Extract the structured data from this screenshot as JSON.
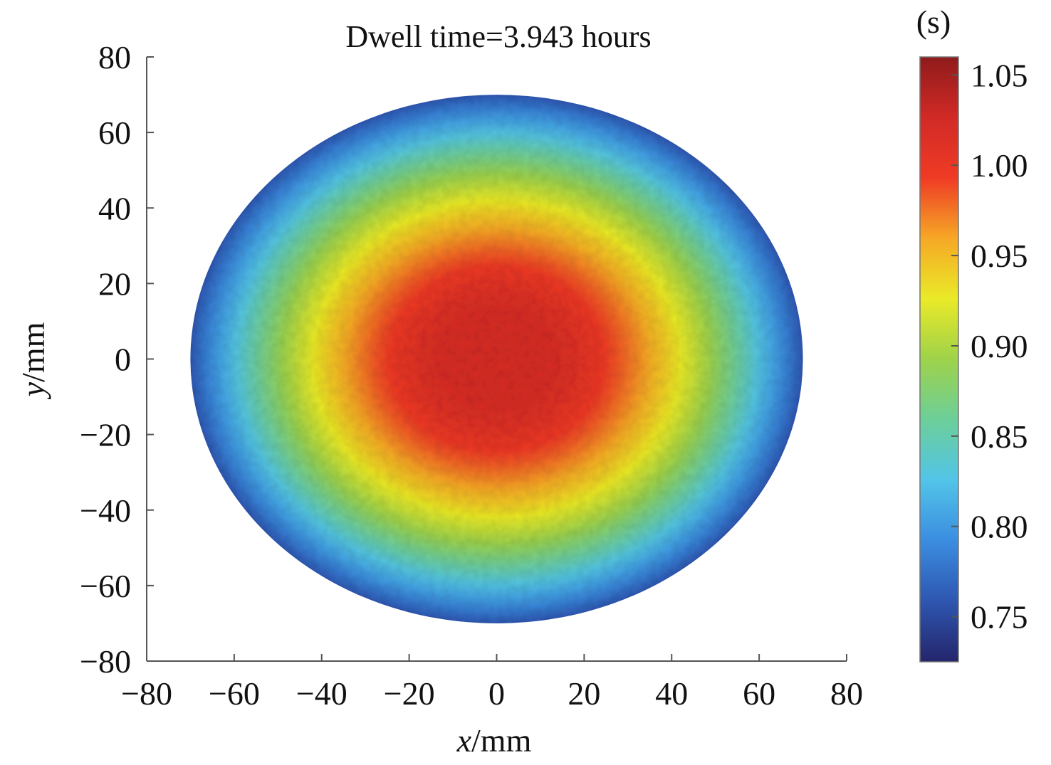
{
  "chart_data": {
    "type": "heatmap",
    "title": "Dwell time=3.943 hours",
    "xlabel": {
      "var": "x",
      "unit": "/mm"
    },
    "ylabel": {
      "var": "y",
      "unit": "/mm"
    },
    "xlim": [
      -80,
      80
    ],
    "ylim": [
      -80,
      80
    ],
    "x_ticks": [
      "−80",
      "−60",
      "−40",
      "−20",
      "0",
      "20",
      "40",
      "60",
      "80"
    ],
    "y_ticks": [
      "80",
      "60",
      "40",
      "20",
      "0",
      "−20",
      "−40",
      "−60",
      "−80"
    ],
    "region": {
      "shape": "circle",
      "center": [
        0,
        0
      ],
      "radius_mm": 70
    },
    "field_model": {
      "description": "radially decreasing dwell time",
      "center_value": 1.02,
      "edge_value": 0.76
    },
    "colorbar": {
      "unit": "(s)",
      "vmin": 0.725,
      "vmax": 1.06,
      "tick_values": [
        1.05,
        1.0,
        0.95,
        0.9,
        0.85,
        0.8,
        0.75
      ],
      "tick_labels": [
        "1.05",
        "1.00",
        "0.95",
        "0.90",
        "0.85",
        "0.80",
        "0.75"
      ],
      "colormap": [
        "#24256b",
        "#2e56b0",
        "#3b8de0",
        "#52c4e8",
        "#6ccf9a",
        "#9ed24a",
        "#eaea28",
        "#f6a826",
        "#ef3b25",
        "#d12a26",
        "#8e1b1b"
      ]
    }
  }
}
